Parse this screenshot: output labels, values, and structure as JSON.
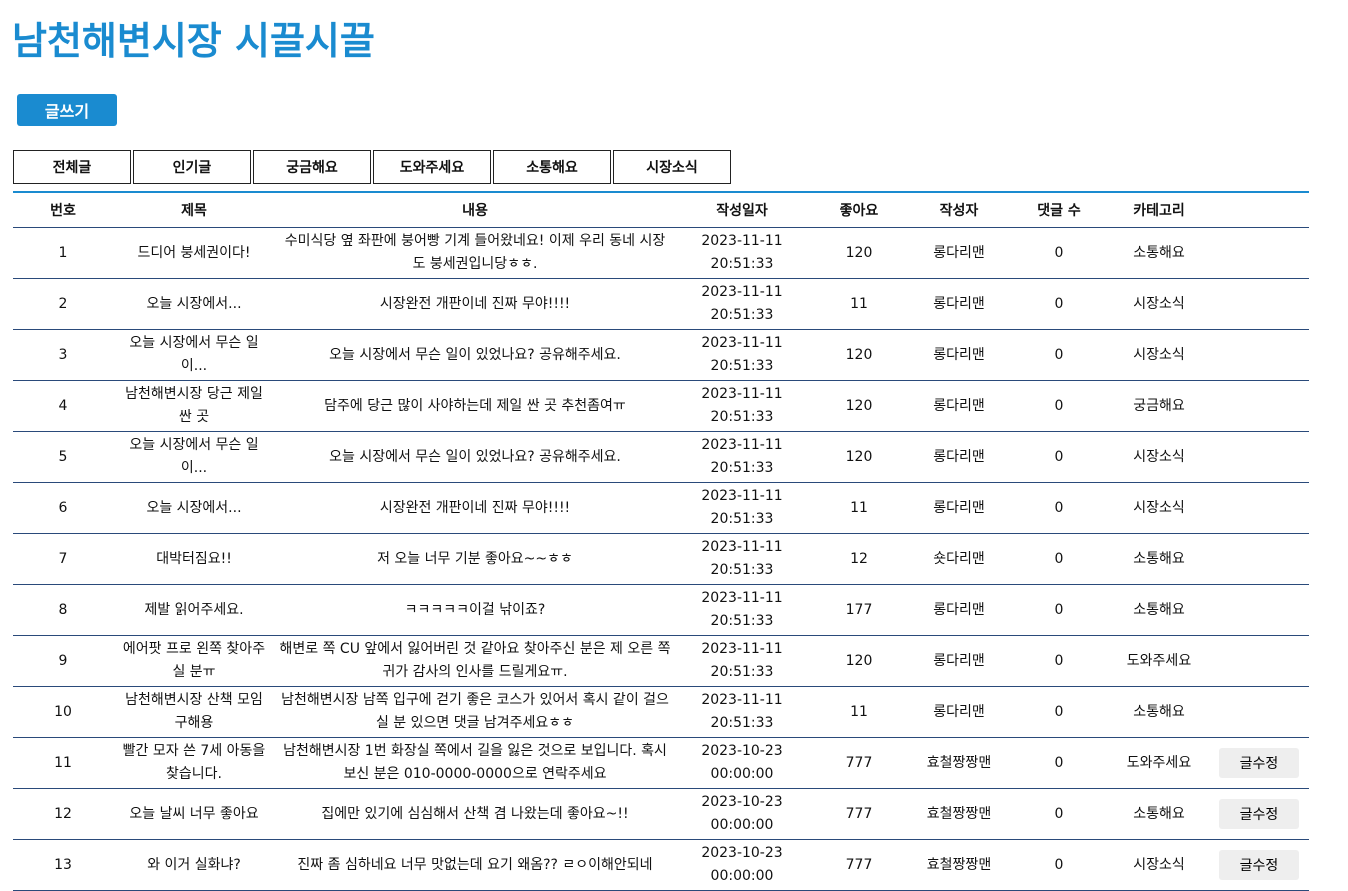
{
  "header": {
    "title": "남천해변시장 시끌시끌",
    "write_button": "글쓰기"
  },
  "tabs": [
    "전체글",
    "인기글",
    "궁금해요",
    "도와주세요",
    "소통해요",
    "시장소식"
  ],
  "table": {
    "columns": [
      "번호",
      "제목",
      "내용",
      "작성일자",
      "좋아요",
      "작성자",
      "댓글 수",
      "카테고리"
    ],
    "edit_label": "글수정",
    "rows": [
      {
        "no": "1",
        "title": "드디어 붕세권이다!",
        "content": "수미식당 옆 좌판에 붕어빵 기계 들어왔네요! 이제 우리 동네 시장도 붕세권입니당ㅎㅎ.",
        "date": "2023-11-11",
        "time": "20:51:33",
        "likes": "120",
        "author": "롱다리맨",
        "comments": "0",
        "category": "소통해요",
        "editable": false
      },
      {
        "no": "2",
        "title": "오늘 시장에서...",
        "content": "시장완전 개판이네 진짜 무야!!!!",
        "date": "2023-11-11",
        "time": "20:51:33",
        "likes": "11",
        "author": "롱다리맨",
        "comments": "0",
        "category": "시장소식",
        "editable": false
      },
      {
        "no": "3",
        "title": "오늘 시장에서 무슨 일이...",
        "content": "오늘 시장에서 무슨 일이 있었나요? 공유해주세요.",
        "date": "2023-11-11",
        "time": "20:51:33",
        "likes": "120",
        "author": "롱다리맨",
        "comments": "0",
        "category": "시장소식",
        "editable": false
      },
      {
        "no": "4",
        "title": "남천해변시장 당근 제일 싼 곳",
        "content": "담주에 당근 많이 사야하는데 제일 싼 곳 추천좀여ㅠ",
        "date": "2023-11-11",
        "time": "20:51:33",
        "likes": "120",
        "author": "롱다리맨",
        "comments": "0",
        "category": "궁금해요",
        "editable": false
      },
      {
        "no": "5",
        "title": "오늘 시장에서 무슨 일이...",
        "content": "오늘 시장에서 무슨 일이 있었나요? 공유해주세요.",
        "date": "2023-11-11",
        "time": "20:51:33",
        "likes": "120",
        "author": "롱다리맨",
        "comments": "0",
        "category": "시장소식",
        "editable": false
      },
      {
        "no": "6",
        "title": "오늘 시장에서...",
        "content": "시장완전 개판이네 진짜 무야!!!!",
        "date": "2023-11-11",
        "time": "20:51:33",
        "likes": "11",
        "author": "롱다리맨",
        "comments": "0",
        "category": "시장소식",
        "editable": false
      },
      {
        "no": "7",
        "title": "대박터짐요!!",
        "content": "저 오늘 너무 기분 좋아요~~ㅎㅎ",
        "date": "2023-11-11",
        "time": "20:51:33",
        "likes": "12",
        "author": "숏다리맨",
        "comments": "0",
        "category": "소통해요",
        "editable": false
      },
      {
        "no": "8",
        "title": "제발 읽어주세요.",
        "content": "ㅋㅋㅋㅋㅋ이걸 낚이죠?",
        "date": "2023-11-11",
        "time": "20:51:33",
        "likes": "177",
        "author": "롱다리맨",
        "comments": "0",
        "category": "소통해요",
        "editable": false
      },
      {
        "no": "9",
        "title": "에어팟 프로 왼쪽 찾아주실 분ㅠ",
        "content": "해변로 쪽 CU 앞에서 잃어버린 것 같아요 찾아주신 분은 제 오른 쪽 귀가 감사의 인사를 드릴게요ㅠ.",
        "date": "2023-11-11",
        "time": "20:51:33",
        "likes": "120",
        "author": "롱다리맨",
        "comments": "0",
        "category": "도와주세요",
        "editable": false
      },
      {
        "no": "10",
        "title": "남천해변시장 산책 모임 구해용",
        "content": "남천해변시장 남쪽 입구에 걷기 좋은 코스가 있어서 혹시 같이 걸으실 분 있으면 댓글 남겨주세요ㅎㅎ",
        "date": "2023-11-11",
        "time": "20:51:33",
        "likes": "11",
        "author": "롱다리맨",
        "comments": "0",
        "category": "소통해요",
        "editable": false
      },
      {
        "no": "11",
        "title": "빨간 모자 쓴 7세 아동을 찾습니다.",
        "content": "남천해변시장 1번 화장실 쪽에서 길을 잃은 것으로 보입니다. 혹시 보신 분은 010-0000-0000으로 연락주세요",
        "date": "2023-10-23",
        "time": "00:00:00",
        "likes": "777",
        "author": "효철짱짱맨",
        "comments": "0",
        "category": "도와주세요",
        "editable": true
      },
      {
        "no": "12",
        "title": "오늘 날씨 너무 좋아요",
        "content": "집에만 있기에 심심해서 산책 겸 나왔는데 좋아요~!!",
        "date": "2023-10-23",
        "time": "00:00:00",
        "likes": "777",
        "author": "효철짱짱맨",
        "comments": "0",
        "category": "소통해요",
        "editable": true
      },
      {
        "no": "13",
        "title": "와 이거 실화냐?",
        "content": "진짜 좀 심하네요 너무 맛없는데 요기 왜옴?? ㄹㅇ이해안되네",
        "date": "2023-10-23",
        "time": "00:00:00",
        "likes": "777",
        "author": "효철짱짱맨",
        "comments": "0",
        "category": "시장소식",
        "editable": true
      }
    ]
  }
}
